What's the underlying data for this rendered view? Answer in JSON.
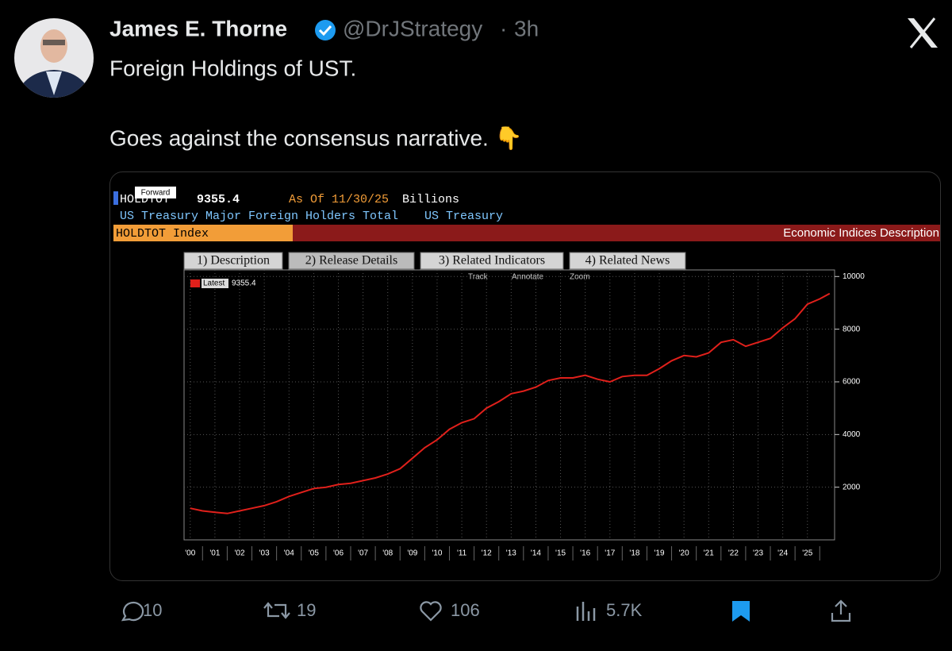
{
  "tweet": {
    "name": "James E. Thorne",
    "handle": "@DrJStrategy",
    "separator": "·",
    "time": "3h",
    "text": [
      "Foreign Holdings of UST.",
      "Goes against the consensus narrative. 👇"
    ],
    "stats": {
      "replies": "10",
      "reposts": "19",
      "likes": "106",
      "views": "5.7K"
    }
  },
  "terminal": {
    "tooltip": "Forward",
    "ticker": "HOLDTOT",
    "as_of": "As Of 11/30/25",
    "units": "Billions",
    "description": "US Treasury Major Foreign Holders Total",
    "source": "US Treasury",
    "security": "HOLDTOT Index",
    "panel": "Economic Indices Description",
    "tabs": [
      "1) Description",
      "2) Release Details",
      "3) Related Indicators",
      "4) Related News"
    ],
    "tools": [
      "Track",
      "Annotate",
      "Zoom"
    ]
  },
  "chart_data": {
    "type": "line",
    "x": [
      2000.0,
      2000.5,
      2001.0,
      2001.5,
      2002.0,
      2002.5,
      2003.0,
      2003.5,
      2004.0,
      2004.5,
      2005.0,
      2005.5,
      2006.0,
      2006.5,
      2007.0,
      2007.5,
      2008.0,
      2008.5,
      2009.0,
      2009.5,
      2010.0,
      2010.5,
      2011.0,
      2011.5,
      2012.0,
      2012.5,
      2013.0,
      2013.5,
      2014.0,
      2014.5,
      2015.0,
      2015.5,
      2016.0,
      2016.5,
      2017.0,
      2017.5,
      2018.0,
      2018.5,
      2019.0,
      2019.5,
      2020.0,
      2020.5,
      2021.0,
      2021.5,
      2022.0,
      2022.5,
      2023.0,
      2023.5,
      2024.0,
      2024.5,
      2025.0,
      2025.5,
      2025.9
    ],
    "series": [
      {
        "name": "Latest",
        "color": "#e0201b",
        "values": [
          1200,
          1100,
          1050,
          1000,
          1100,
          1200,
          1300,
          1450,
          1650,
          1800,
          1950,
          2000,
          2100,
          2150,
          2250,
          2350,
          2500,
          2700,
          3100,
          3500,
          3800,
          4200,
          4450,
          4600,
          5000,
          5250,
          5550,
          5650,
          5800,
          6050,
          6150,
          6150,
          6250,
          6100,
          6000,
          6200,
          6250,
          6250,
          6500,
          6800,
          7000,
          6950,
          7100,
          7500,
          7600,
          7350,
          7500,
          7650,
          8050,
          8400,
          8950,
          9150,
          9355.4
        ]
      }
    ],
    "xlim": [
      1999.75,
      2026.1
    ],
    "xticks": [
      {
        "value": 2000,
        "label": "'00"
      },
      {
        "value": 2001,
        "label": "'01"
      },
      {
        "value": 2002,
        "label": "'02"
      },
      {
        "value": 2003,
        "label": "'03"
      },
      {
        "value": 2004,
        "label": "'04"
      },
      {
        "value": 2005,
        "label": "'05"
      },
      {
        "value": 2006,
        "label": "'06"
      },
      {
        "value": 2007,
        "label": "'07"
      },
      {
        "value": 2008,
        "label": "'08"
      },
      {
        "value": 2009,
        "label": "'09"
      },
      {
        "value": 2010,
        "label": "'10"
      },
      {
        "value": 2011,
        "label": "'11"
      },
      {
        "value": 2012,
        "label": "'12"
      },
      {
        "value": 2013,
        "label": "'13"
      },
      {
        "value": 2014,
        "label": "'14"
      },
      {
        "value": 2015,
        "label": "'15"
      },
      {
        "value": 2016,
        "label": "'16"
      },
      {
        "value": 2017,
        "label": "'17"
      },
      {
        "value": 2018,
        "label": "'18"
      },
      {
        "value": 2019,
        "label": "'19"
      },
      {
        "value": 2020,
        "label": "'20"
      },
      {
        "value": 2021,
        "label": "'21"
      },
      {
        "value": 2022,
        "label": "'22"
      },
      {
        "value": 2023,
        "label": "'23"
      },
      {
        "value": 2024,
        "label": "'24"
      },
      {
        "value": 2025,
        "label": "'25"
      }
    ],
    "ylim": [
      0,
      10250
    ],
    "yticks": [
      2000,
      4000,
      6000,
      8000,
      10000
    ],
    "grid": true
  }
}
